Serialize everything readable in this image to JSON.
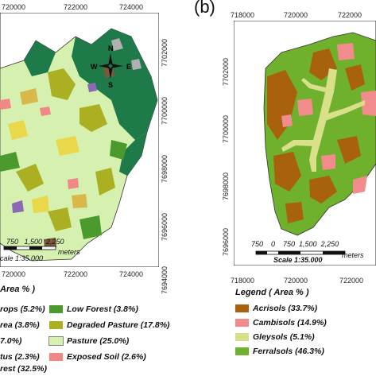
{
  "panel_a": {
    "top_ticks": [
      "720000",
      "722000",
      "724000"
    ],
    "bottom_ticks": [
      "720000",
      "722000",
      "724000"
    ],
    "right_ticks": [
      "7702000",
      "7700000",
      "7698000",
      "7696000",
      "7694000"
    ],
    "scale_numbers": "750   1,500  2,250",
    "scale_units": "meters",
    "scale_ratio": "cale 1:35.000",
    "legend_title": "Area % )",
    "legend": [
      {
        "label": "rops (5.2%)",
        "color": "#d9b84a"
      },
      {
        "label": "Low Forest (3.8%)",
        "color": "#4a9a2e"
      },
      {
        "label": "rea (3.8%)",
        "color": "#8a6ab8"
      },
      {
        "label": "Degraded Pasture (17.8%)",
        "color": "#aab022"
      },
      {
        "label": "7.0%)",
        "color": "#e8d84a"
      },
      {
        "label": "Pasture (25.0%)",
        "color": "#d6f0b0"
      },
      {
        "label": "tus (2.3%)",
        "color": "#7a5a3a"
      },
      {
        "label": "Exposed Soil (2.6%)",
        "color": "#f08888"
      },
      {
        "label": "rest (32.5%)",
        "color": "#1f7a4a"
      }
    ],
    "compass": {
      "n": "N",
      "e": "E",
      "s": "S",
      "w": "W"
    }
  },
  "panel_b": {
    "label": "(b)",
    "top_ticks": [
      "718000",
      "720000",
      "722000"
    ],
    "bottom_ticks": [
      "718000",
      "720000",
      "722000"
    ],
    "left_ticks": [
      "7702000",
      "7700000",
      "7698000",
      "7696000"
    ],
    "scale_numbers": "750    0    750  1,500  2,250",
    "scale_units": "meters",
    "scale_ratio": "Scale 1:35.000",
    "legend_title": "Legend ( Area % )",
    "legend": [
      {
        "label": "Acrisols (33.7%)",
        "color": "#a8620e"
      },
      {
        "label": "Cambisols (14.9%)",
        "color": "#f28c8c"
      },
      {
        "label": "Gleysols (5.1%)",
        "color": "#d8e08a"
      },
      {
        "label": "Ferralsols (46.3%)",
        "color": "#6fb02c"
      }
    ]
  }
}
